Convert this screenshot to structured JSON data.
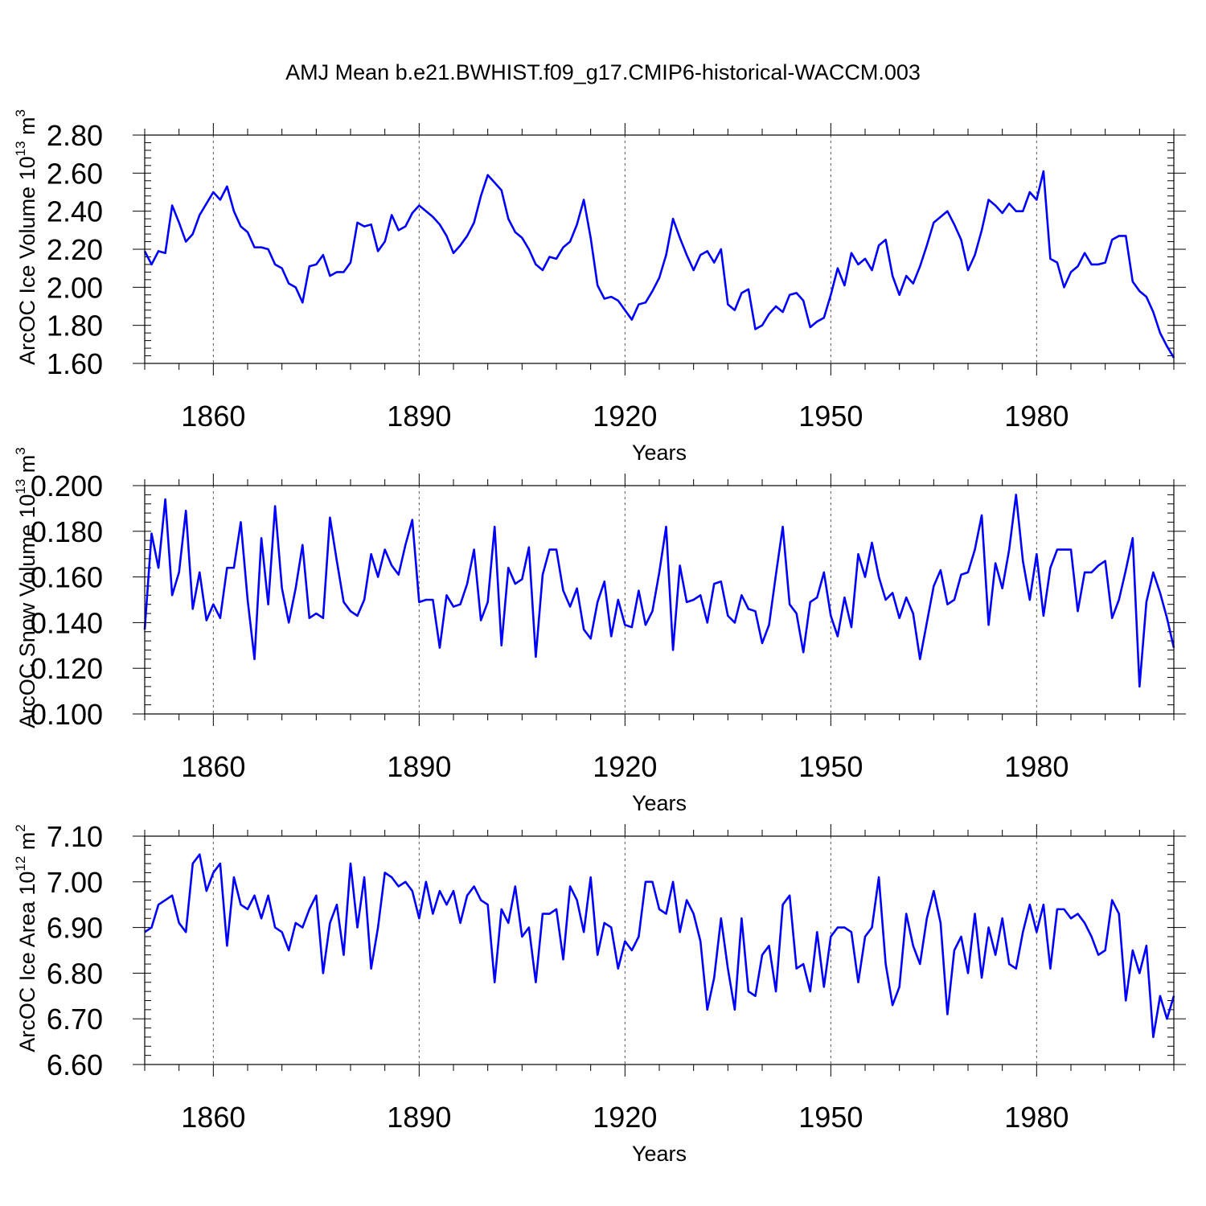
{
  "figure": {
    "title": "AMJ Mean b.e21.BWHIST.f09_g17.CMIP6-historical-WACCM.003"
  },
  "colors": {
    "line": "#0000ff",
    "axis": "#000000",
    "grid": "#555555"
  },
  "chart_data": [
    {
      "type": "line",
      "id": "ice-volume",
      "ylabel_main": "ArcOC Ice Volume 10",
      "ylabel_exp": "13",
      "ylabel_unit": " m",
      "ylabel_unit_exp": "3",
      "xlabel": "Years",
      "xlim": [
        1850,
        2000
      ],
      "ylim": [
        1.6,
        2.8
      ],
      "xticks": [
        1860,
        1890,
        1920,
        1950,
        1980
      ],
      "xtick_labels": [
        "1860",
        "1890",
        "1920",
        "1950",
        "1980"
      ],
      "yticks": [
        1.6,
        1.8,
        2.0,
        2.2,
        2.4,
        2.6,
        2.8
      ],
      "ytick_labels": [
        "1.60",
        "1.80",
        "2.00",
        "2.20",
        "2.40",
        "2.60",
        "2.80"
      ],
      "y_minor_step": 0.04,
      "grid_x": true,
      "series": [
        {
          "name": "AMJ mean",
          "x_start": 1850,
          "values": [
            2.19,
            2.12,
            2.19,
            2.18,
            2.43,
            2.34,
            2.24,
            2.28,
            2.38,
            2.44,
            2.5,
            2.46,
            2.53,
            2.4,
            2.32,
            2.29,
            2.21,
            2.21,
            2.2,
            2.12,
            2.1,
            2.02,
            2.0,
            1.92,
            2.11,
            2.12,
            2.17,
            2.06,
            2.08,
            2.08,
            2.13,
            2.34,
            2.32,
            2.33,
            2.19,
            2.24,
            2.38,
            2.3,
            2.32,
            2.39,
            2.43,
            2.4,
            2.37,
            2.33,
            2.27,
            2.18,
            2.22,
            2.27,
            2.34,
            2.48,
            2.59,
            2.55,
            2.51,
            2.36,
            2.29,
            2.26,
            2.2,
            2.12,
            2.09,
            2.16,
            2.15,
            2.21,
            2.24,
            2.33,
            2.46,
            2.26,
            2.01,
            1.94,
            1.95,
            1.93,
            1.88,
            1.83,
            1.91,
            1.92,
            1.98,
            2.05,
            2.17,
            2.36,
            2.26,
            2.17,
            2.09,
            2.17,
            2.19,
            2.13,
            2.2,
            1.91,
            1.88,
            1.97,
            1.99,
            1.78,
            1.8,
            1.86,
            1.9,
            1.87,
            1.96,
            1.97,
            1.93,
            1.79,
            1.82,
            1.84,
            1.96,
            2.1,
            2.01,
            2.18,
            2.12,
            2.15,
            2.09,
            2.22,
            2.25,
            2.06,
            1.96,
            2.06,
            2.02,
            2.11,
            2.22,
            2.34,
            2.37,
            2.4,
            2.33,
            2.25,
            2.09,
            2.17,
            2.3,
            2.46,
            2.43,
            2.39,
            2.44,
            2.4,
            2.4,
            2.5,
            2.46,
            2.61,
            2.15,
            2.13,
            2.0,
            2.08,
            2.11,
            2.18,
            2.12,
            2.12,
            2.13,
            2.25,
            2.27,
            2.27,
            2.03,
            1.98,
            1.95,
            1.87,
            1.76,
            1.69,
            1.63
          ]
        }
      ]
    },
    {
      "type": "line",
      "id": "snow-volume",
      "ylabel_main": "ArcOC Snow Volume 10",
      "ylabel_exp": "13",
      "ylabel_unit": " m",
      "ylabel_unit_exp": "3",
      "xlabel": "Years",
      "xlim": [
        1850,
        2000
      ],
      "ylim": [
        0.1,
        0.2
      ],
      "xticks": [
        1860,
        1890,
        1920,
        1950,
        1980
      ],
      "xtick_labels": [
        "1860",
        "1890",
        "1920",
        "1950",
        "1980"
      ],
      "yticks": [
        0.1,
        0.12,
        0.14,
        0.16,
        0.18,
        0.2
      ],
      "ytick_labels": [
        "0.100",
        "0.120",
        "0.140",
        "0.160",
        "0.180",
        "0.200"
      ],
      "y_minor_step": 0.004,
      "grid_x": true,
      "series": [
        {
          "name": "AMJ mean",
          "x_start": 1850,
          "values": [
            0.137,
            0.179,
            0.164,
            0.194,
            0.152,
            0.162,
            0.189,
            0.146,
            0.162,
            0.141,
            0.148,
            0.142,
            0.164,
            0.164,
            0.184,
            0.15,
            0.124,
            0.177,
            0.148,
            0.191,
            0.155,
            0.14,
            0.155,
            0.174,
            0.142,
            0.144,
            0.142,
            0.186,
            0.167,
            0.149,
            0.145,
            0.143,
            0.15,
            0.17,
            0.16,
            0.172,
            0.165,
            0.161,
            0.174,
            0.185,
            0.149,
            0.15,
            0.15,
            0.129,
            0.152,
            0.147,
            0.148,
            0.157,
            0.172,
            0.141,
            0.149,
            0.182,
            0.13,
            0.164,
            0.157,
            0.159,
            0.173,
            0.125,
            0.161,
            0.172,
            0.172,
            0.154,
            0.147,
            0.155,
            0.137,
            0.133,
            0.149,
            0.158,
            0.134,
            0.15,
            0.139,
            0.138,
            0.154,
            0.139,
            0.145,
            0.162,
            0.182,
            0.128,
            0.165,
            0.149,
            0.15,
            0.152,
            0.14,
            0.157,
            0.158,
            0.143,
            0.14,
            0.152,
            0.146,
            0.145,
            0.131,
            0.139,
            0.161,
            0.182,
            0.148,
            0.144,
            0.127,
            0.149,
            0.151,
            0.162,
            0.143,
            0.134,
            0.151,
            0.138,
            0.17,
            0.16,
            0.175,
            0.16,
            0.15,
            0.153,
            0.142,
            0.151,
            0.144,
            0.124,
            0.14,
            0.156,
            0.163,
            0.148,
            0.15,
            0.161,
            0.162,
            0.172,
            0.187,
            0.139,
            0.166,
            0.155,
            0.172,
            0.196,
            0.167,
            0.15,
            0.17,
            0.143,
            0.164,
            0.172,
            0.172,
            0.172,
            0.145,
            0.162,
            0.162,
            0.165,
            0.167,
            0.142,
            0.15,
            0.163,
            0.177,
            0.112,
            0.149,
            0.162,
            0.153,
            0.142,
            0.129
          ]
        }
      ]
    },
    {
      "type": "line",
      "id": "ice-area",
      "ylabel_main": "ArcOC Ice Area 10",
      "ylabel_exp": "12",
      "ylabel_unit": " m",
      "ylabel_unit_exp": "2",
      "xlabel": "Years",
      "xlim": [
        1850,
        2000
      ],
      "ylim": [
        6.6,
        7.1
      ],
      "xticks": [
        1860,
        1890,
        1920,
        1950,
        1980
      ],
      "xtick_labels": [
        "1860",
        "1890",
        "1920",
        "1950",
        "1980"
      ],
      "yticks": [
        6.6,
        6.7,
        6.8,
        6.9,
        7.0,
        7.1
      ],
      "ytick_labels": [
        "6.60",
        "6.70",
        "6.80",
        "6.90",
        "7.00",
        "7.10"
      ],
      "y_minor_step": 0.02,
      "grid_x": true,
      "series": [
        {
          "name": "AMJ mean",
          "x_start": 1850,
          "values": [
            6.89,
            6.9,
            6.95,
            6.96,
            6.97,
            6.91,
            6.89,
            7.04,
            7.06,
            6.98,
            7.02,
            7.04,
            6.86,
            7.01,
            6.95,
            6.94,
            6.97,
            6.92,
            6.97,
            6.9,
            6.89,
            6.85,
            6.91,
            6.9,
            6.94,
            6.97,
            6.8,
            6.91,
            6.95,
            6.84,
            7.04,
            6.9,
            7.01,
            6.81,
            6.9,
            7.02,
            7.01,
            6.99,
            7.0,
            6.98,
            6.92,
            7.0,
            6.93,
            6.98,
            6.95,
            6.98,
            6.91,
            6.97,
            6.99,
            6.96,
            6.95,
            6.78,
            6.94,
            6.91,
            6.99,
            6.88,
            6.9,
            6.78,
            6.93,
            6.93,
            6.94,
            6.83,
            6.99,
            6.96,
            6.89,
            7.01,
            6.84,
            6.91,
            6.9,
            6.81,
            6.87,
            6.85,
            6.88,
            7.0,
            7.0,
            6.94,
            6.93,
            7.0,
            6.89,
            6.96,
            6.93,
            6.87,
            6.72,
            6.79,
            6.92,
            6.81,
            6.72,
            6.92,
            6.76,
            6.75,
            6.84,
            6.86,
            6.76,
            6.95,
            6.97,
            6.81,
            6.82,
            6.76,
            6.89,
            6.77,
            6.88,
            6.9,
            6.9,
            6.89,
            6.78,
            6.88,
            6.9,
            7.01,
            6.82,
            6.73,
            6.77,
            6.93,
            6.86,
            6.82,
            6.92,
            6.98,
            6.91,
            6.71,
            6.85,
            6.88,
            6.8,
            6.93,
            6.79,
            6.9,
            6.84,
            6.92,
            6.82,
            6.81,
            6.89,
            6.95,
            6.89,
            6.95,
            6.81,
            6.94,
            6.94,
            6.92,
            6.93,
            6.91,
            6.88,
            6.84,
            6.85,
            6.96,
            6.93,
            6.74,
            6.85,
            6.8,
            6.86,
            6.66,
            6.75,
            6.7,
            6.75
          ]
        }
      ]
    }
  ]
}
